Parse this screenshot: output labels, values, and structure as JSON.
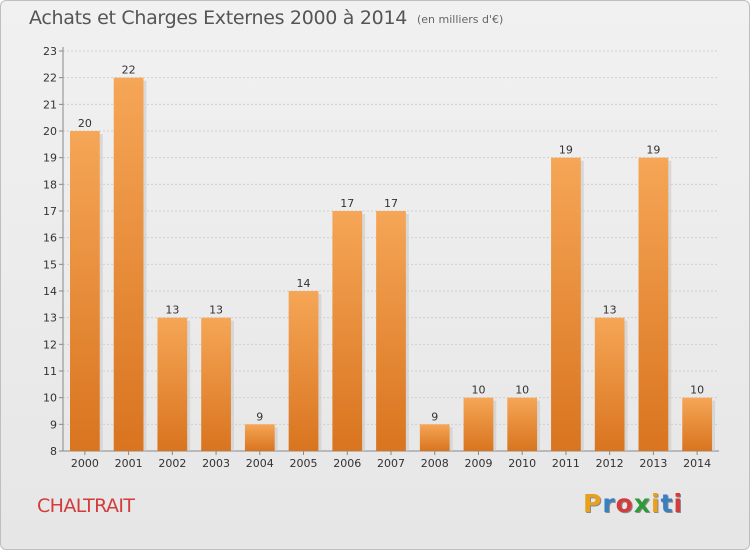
{
  "header": {
    "title": "Achats et Charges Externes 2000 à 2014",
    "subtitle": "(en milliers d'€)"
  },
  "footer": {
    "town": "CHALTRAIT",
    "logo": "Proxiti",
    "logo_colors": [
      "#e8a020",
      "#3a7fc0",
      "#d23c3c",
      "#2f9a3a",
      "#e8a020",
      "#3a7fc0",
      "#d23c3c"
    ]
  },
  "chart_data": {
    "type": "bar",
    "categories": [
      "2000",
      "2001",
      "2002",
      "2003",
      "2004",
      "2005",
      "2006",
      "2007",
      "2008",
      "2009",
      "2010",
      "2011",
      "2012",
      "2013",
      "2014"
    ],
    "values": [
      20,
      22,
      13,
      13,
      9,
      14,
      17,
      17,
      9,
      10,
      10,
      19,
      13,
      19,
      10
    ],
    "yticks": [
      8,
      9,
      10,
      11,
      12,
      13,
      14,
      15,
      16,
      17,
      18,
      19,
      20,
      21,
      22,
      23
    ],
    "ylim": [
      8,
      23
    ],
    "grid": true,
    "bar_color_top": "#f5a656",
    "bar_color_bottom": "#d9741f"
  }
}
